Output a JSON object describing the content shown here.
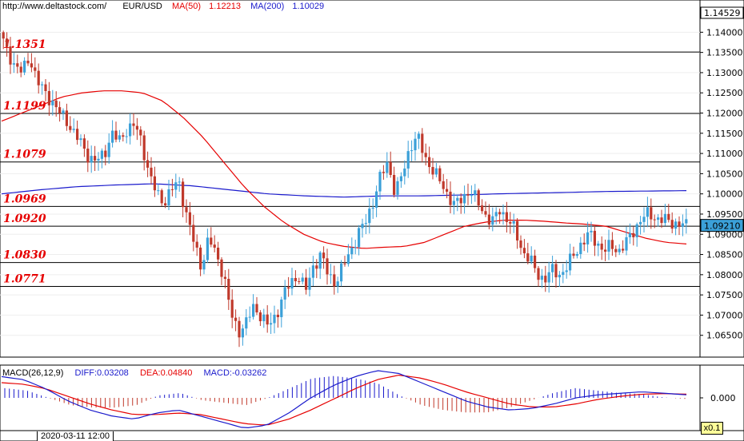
{
  "header": {
    "site": "http://www.deltastock.com/",
    "symbol": "EUR/USD",
    "ma50_label": "MA(50)",
    "ma50_value": "1.12213",
    "ma200_label": "MA(200)",
    "ma200_value": "1.10029"
  },
  "macd_header": {
    "title": "MACD(26,12,9)",
    "diff": "DIFF:0.03208",
    "dea": "DEA:0.04840",
    "macd": "MACD:-0.03262"
  },
  "footer": {
    "date": "2020-03-11 12:00",
    "zoom": "x0.1"
  },
  "colors": {
    "up": "#3ba0d8",
    "down": "#c0392b",
    "ma50": "#e60000",
    "ma200": "#1a1acc",
    "level_text": "#e60000",
    "macd_diff": "#1a1acc",
    "macd_dea": "#e60000"
  },
  "chart_data": {
    "type": "candlestick",
    "symbol": "EUR/USD",
    "y_range": [
      1.06,
      1.146
    ],
    "y_ticks": [
      "1.14000",
      "1.13500",
      "1.13000",
      "1.12500",
      "1.12000",
      "1.11500",
      "1.11000",
      "1.10500",
      "1.10000",
      "1.09500",
      "1.09000",
      "1.08500",
      "1.08000",
      "1.07500",
      "1.07000",
      "1.06500"
    ],
    "current_high_label": "1.14529",
    "current_price_label": "1.09210",
    "current_price": 1.0921,
    "levels": [
      {
        "label": "1.1351",
        "value": 1.1351
      },
      {
        "label": "1.1199",
        "value": 1.1199
      },
      {
        "label": "1.1079",
        "value": 1.1079
      },
      {
        "label": "1.0969",
        "value": 1.0969
      },
      {
        "label": "1.0920",
        "value": 1.092
      },
      {
        "label": "1.0830",
        "value": 1.083
      },
      {
        "label": "1.0771",
        "value": 1.0771
      }
    ],
    "close_path": [
      1.14,
      1.135,
      1.132,
      1.13,
      1.134,
      1.128,
      1.125,
      1.123,
      1.12,
      1.118,
      1.115,
      1.112,
      1.109,
      1.108,
      1.11,
      1.115,
      1.113,
      1.116,
      1.117,
      1.113,
      1.105,
      1.1,
      1.098,
      1.101,
      1.103,
      1.095,
      1.088,
      1.082,
      1.089,
      1.085,
      1.08,
      1.07,
      1.066,
      1.068,
      1.072,
      1.07,
      1.067,
      1.07,
      1.075,
      1.078,
      1.08,
      1.076,
      1.082,
      1.085,
      1.08,
      1.078,
      1.082,
      1.086,
      1.09,
      1.093,
      1.098,
      1.104,
      1.108,
      1.1,
      1.105,
      1.112,
      1.114,
      1.109,
      1.106,
      1.103,
      1.1,
      1.097,
      1.099,
      1.101,
      1.098,
      1.095,
      1.093,
      1.096,
      1.094,
      1.091,
      1.086,
      1.084,
      1.08,
      1.079,
      1.081,
      1.08,
      1.082,
      1.085,
      1.088,
      1.09,
      1.088,
      1.086,
      1.087,
      1.086,
      1.088,
      1.091,
      1.094,
      1.095,
      1.094,
      1.0935,
      1.093,
      1.0925,
      1.0921
    ],
    "ma50_path": [
      1.118,
      1.12,
      1.122,
      1.124,
      1.125,
      1.1255,
      1.1255,
      1.125,
      1.123,
      1.119,
      1.114,
      1.108,
      1.102,
      1.097,
      1.093,
      1.09,
      1.088,
      1.087,
      1.0865,
      1.0868,
      1.087,
      1.088,
      1.09,
      1.092,
      1.093,
      1.0935,
      1.0935,
      1.0932,
      1.0928,
      1.0925,
      1.092,
      1.0905,
      1.089,
      1.088,
      1.0876
    ],
    "ma200_path": [
      1.1,
      1.101,
      1.1018,
      1.1022,
      1.1025,
      1.102,
      1.101,
      1.1,
      1.0995,
      1.0992,
      1.0995,
      1.0995,
      1.0997,
      1.1,
      1.1002,
      1.1004,
      1.1006,
      1.1007,
      1.1008
    ],
    "macd_axis_label": "0.000"
  }
}
